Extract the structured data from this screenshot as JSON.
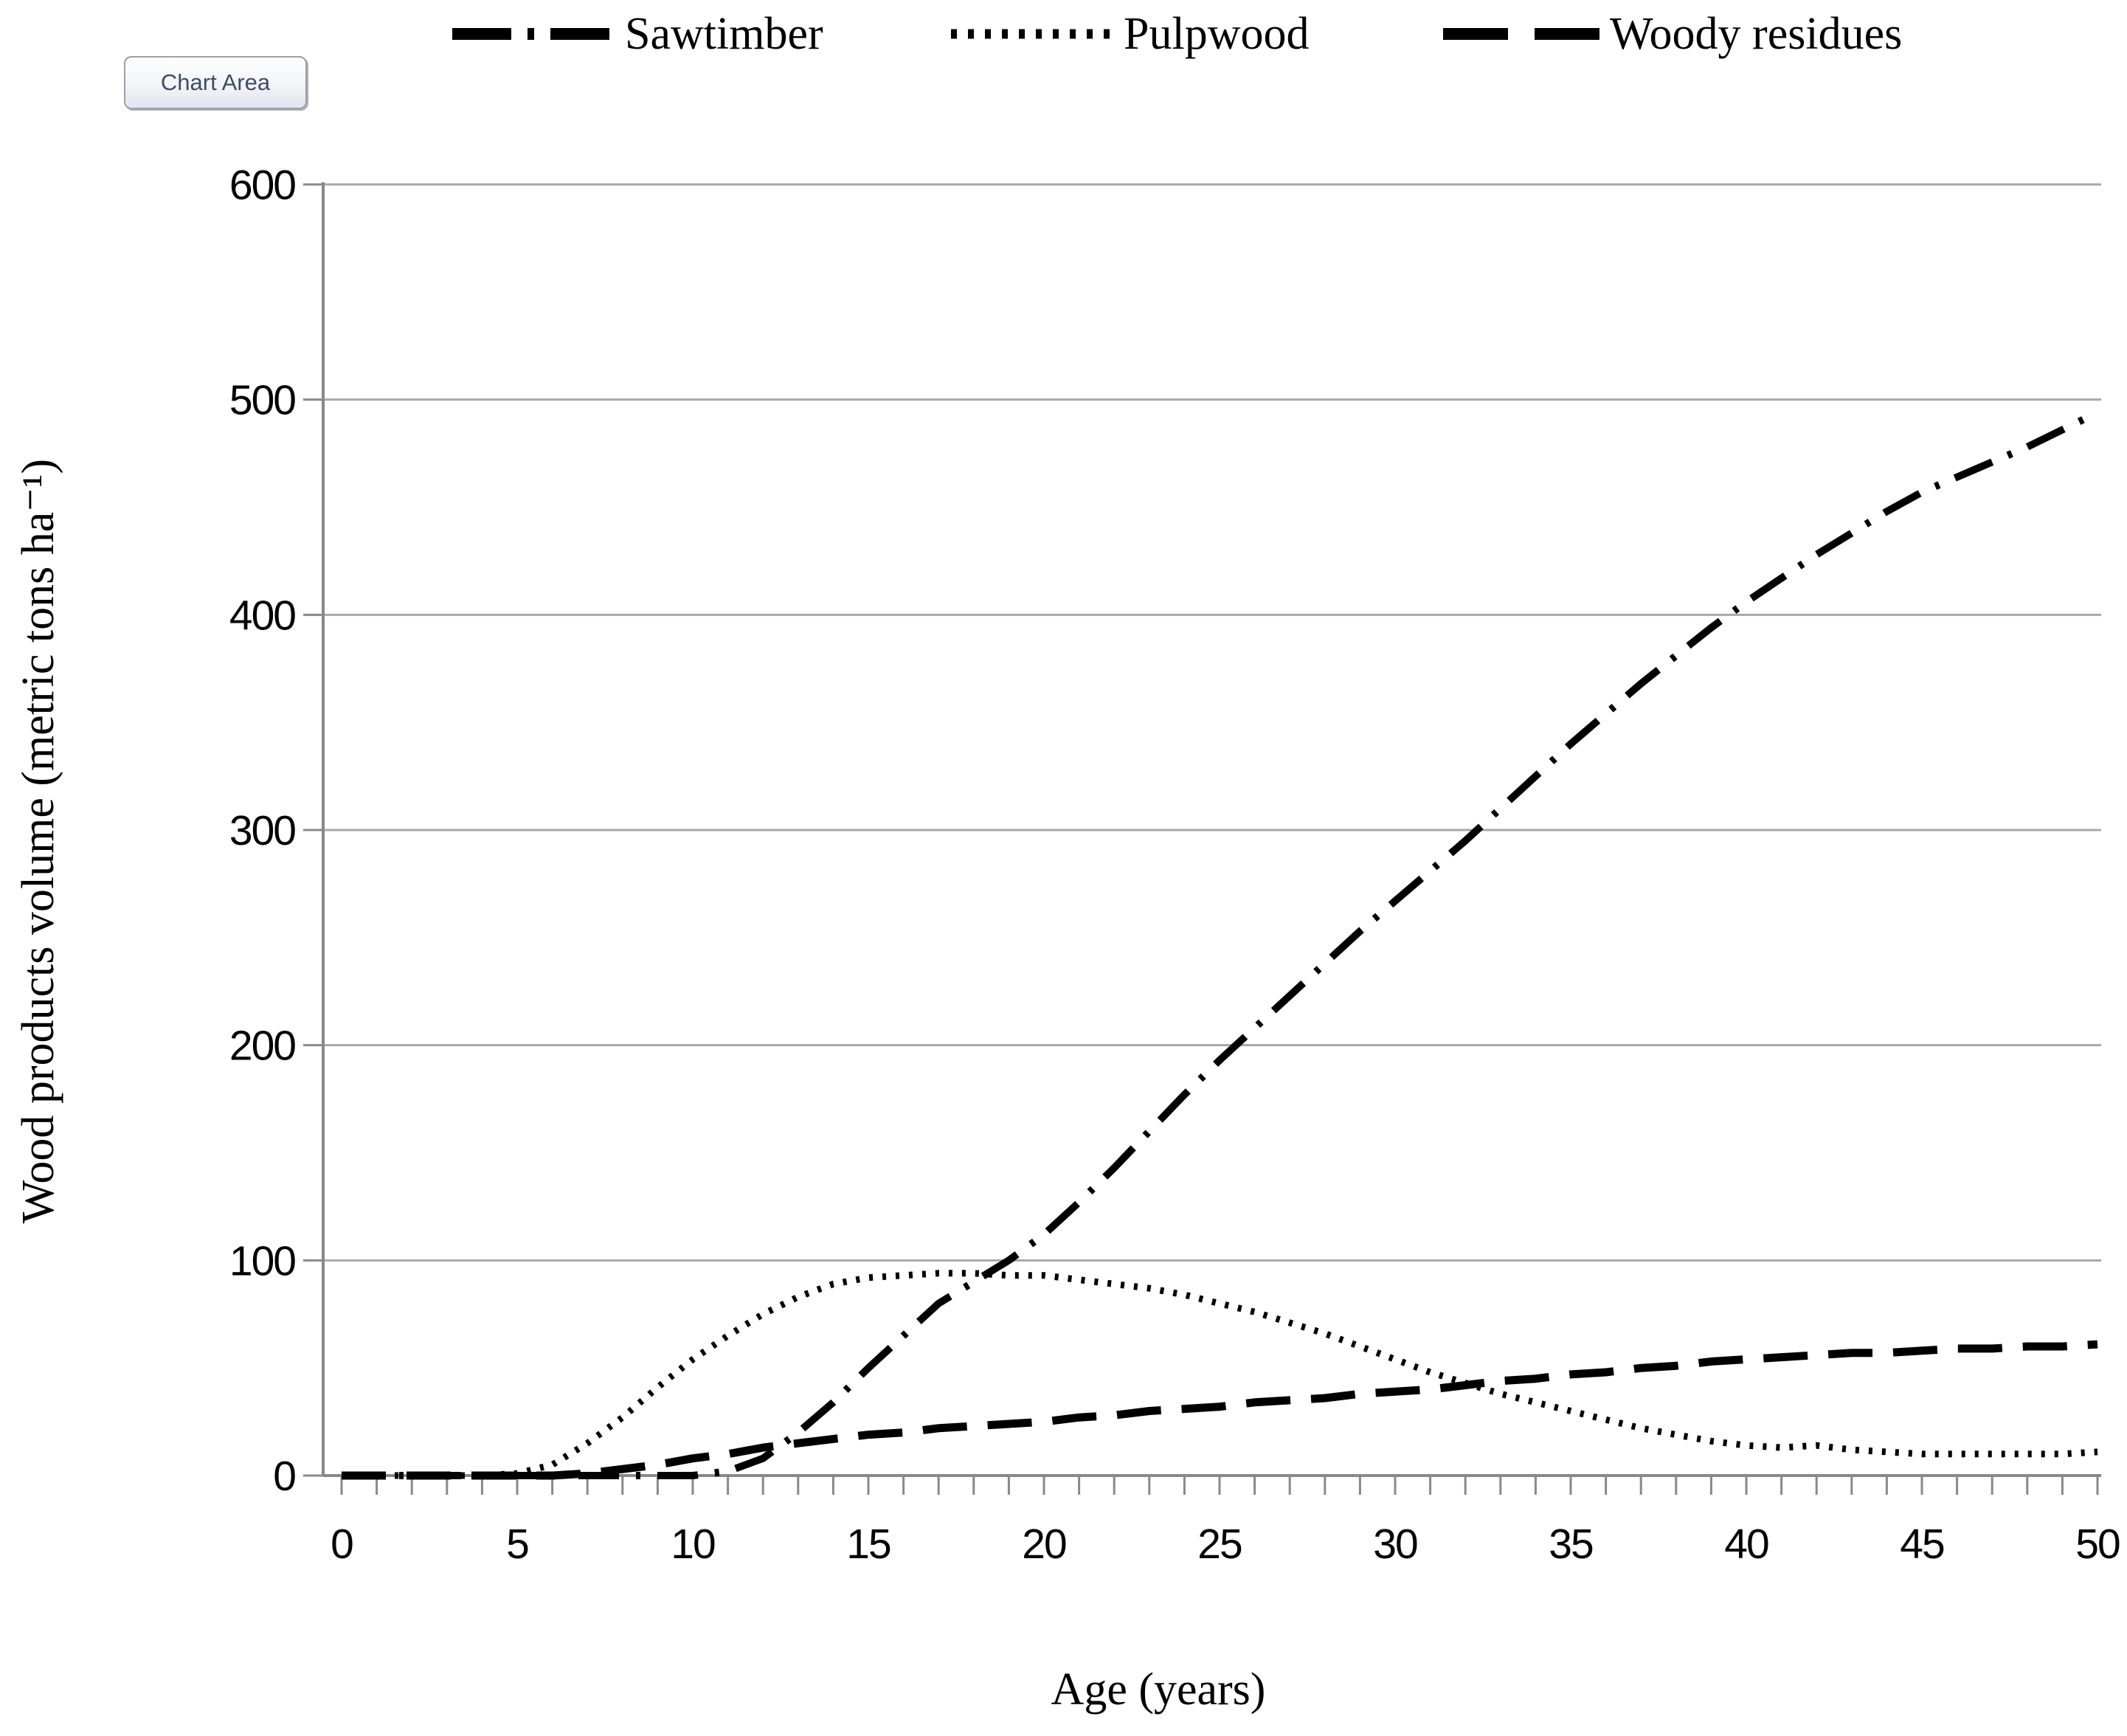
{
  "tooltip": {
    "label": "Chart Area"
  },
  "legend": {
    "position": "top"
  },
  "colors": {
    "series": "#000000",
    "axis_line": "#898989",
    "gridline": "#a8a8a8",
    "tooltip_text": "#3f4d63",
    "background": "#ffffff"
  },
  "chart_data": {
    "type": "line",
    "title": "",
    "xlabel": "Age (years)",
    "ylabel": "Wood products volume (metric tons ha⁻¹)",
    "grid": "horizontal gridlines every 100",
    "legend_position": "top",
    "x_axis": {
      "min": 0,
      "max": 50,
      "major_step": 5,
      "minor_step": 1,
      "tick_labels": [
        "0",
        "5",
        "10",
        "15",
        "20",
        "25",
        "30",
        "35",
        "40",
        "45",
        "50"
      ]
    },
    "y_axis": {
      "min": 0,
      "max": 600,
      "step": 100,
      "tick_labels": [
        "0",
        "100",
        "200",
        "300",
        "400",
        "500",
        "600"
      ]
    },
    "x": [
      0,
      1,
      2,
      3,
      4,
      5,
      6,
      7,
      8,
      9,
      10,
      11,
      12,
      13,
      14,
      15,
      16,
      17,
      18,
      19,
      20,
      21,
      22,
      23,
      24,
      25,
      26,
      27,
      28,
      29,
      30,
      31,
      32,
      33,
      34,
      35,
      36,
      37,
      38,
      39,
      40,
      41,
      42,
      43,
      44,
      45,
      46,
      47,
      48,
      49,
      50
    ],
    "series": [
      {
        "name": "Sawtimber",
        "line_style": "dash-dot",
        "color": "#000000",
        "values": [
          0,
          0,
          0,
          0,
          0,
          0,
          0,
          0,
          0,
          0,
          0,
          2,
          8,
          20,
          34,
          50,
          65,
          80,
          90,
          100,
          112,
          127,
          143,
          160,
          177,
          193,
          208,
          223,
          238,
          253,
          267,
          281,
          295,
          310,
          325,
          340,
          354,
          368,
          381,
          394,
          406,
          417,
          428,
          438,
          448,
          457,
          464,
          471,
          478,
          486,
          494
        ]
      },
      {
        "name": "Pulpwood",
        "line_style": "dotted",
        "color": "#000000",
        "values": [
          0,
          0,
          0,
          0,
          0,
          1,
          5,
          15,
          27,
          41,
          54,
          65,
          75,
          83,
          89,
          92,
          93,
          94,
          94,
          93,
          93,
          91,
          89,
          87,
          84,
          80,
          76,
          71,
          66,
          60,
          54,
          48,
          43,
          38,
          34,
          30,
          26,
          22,
          19,
          16,
          14,
          13,
          14,
          12,
          11,
          10,
          10,
          10,
          10,
          10,
          11
        ]
      },
      {
        "name": "Woody residues",
        "line_style": "long-dash",
        "color": "#000000",
        "values": [
          0,
          0,
          0,
          0,
          0,
          0,
          0,
          1,
          3,
          5,
          8,
          10,
          13,
          15,
          17,
          19,
          20,
          22,
          23,
          24,
          25,
          27,
          28,
          30,
          31,
          32,
          34,
          35,
          36,
          38,
          39,
          40,
          42,
          44,
          45,
          47,
          48,
          50,
          51,
          53,
          54,
          55,
          56,
          57,
          57,
          58,
          59,
          59,
          60,
          60,
          61
        ]
      }
    ]
  }
}
